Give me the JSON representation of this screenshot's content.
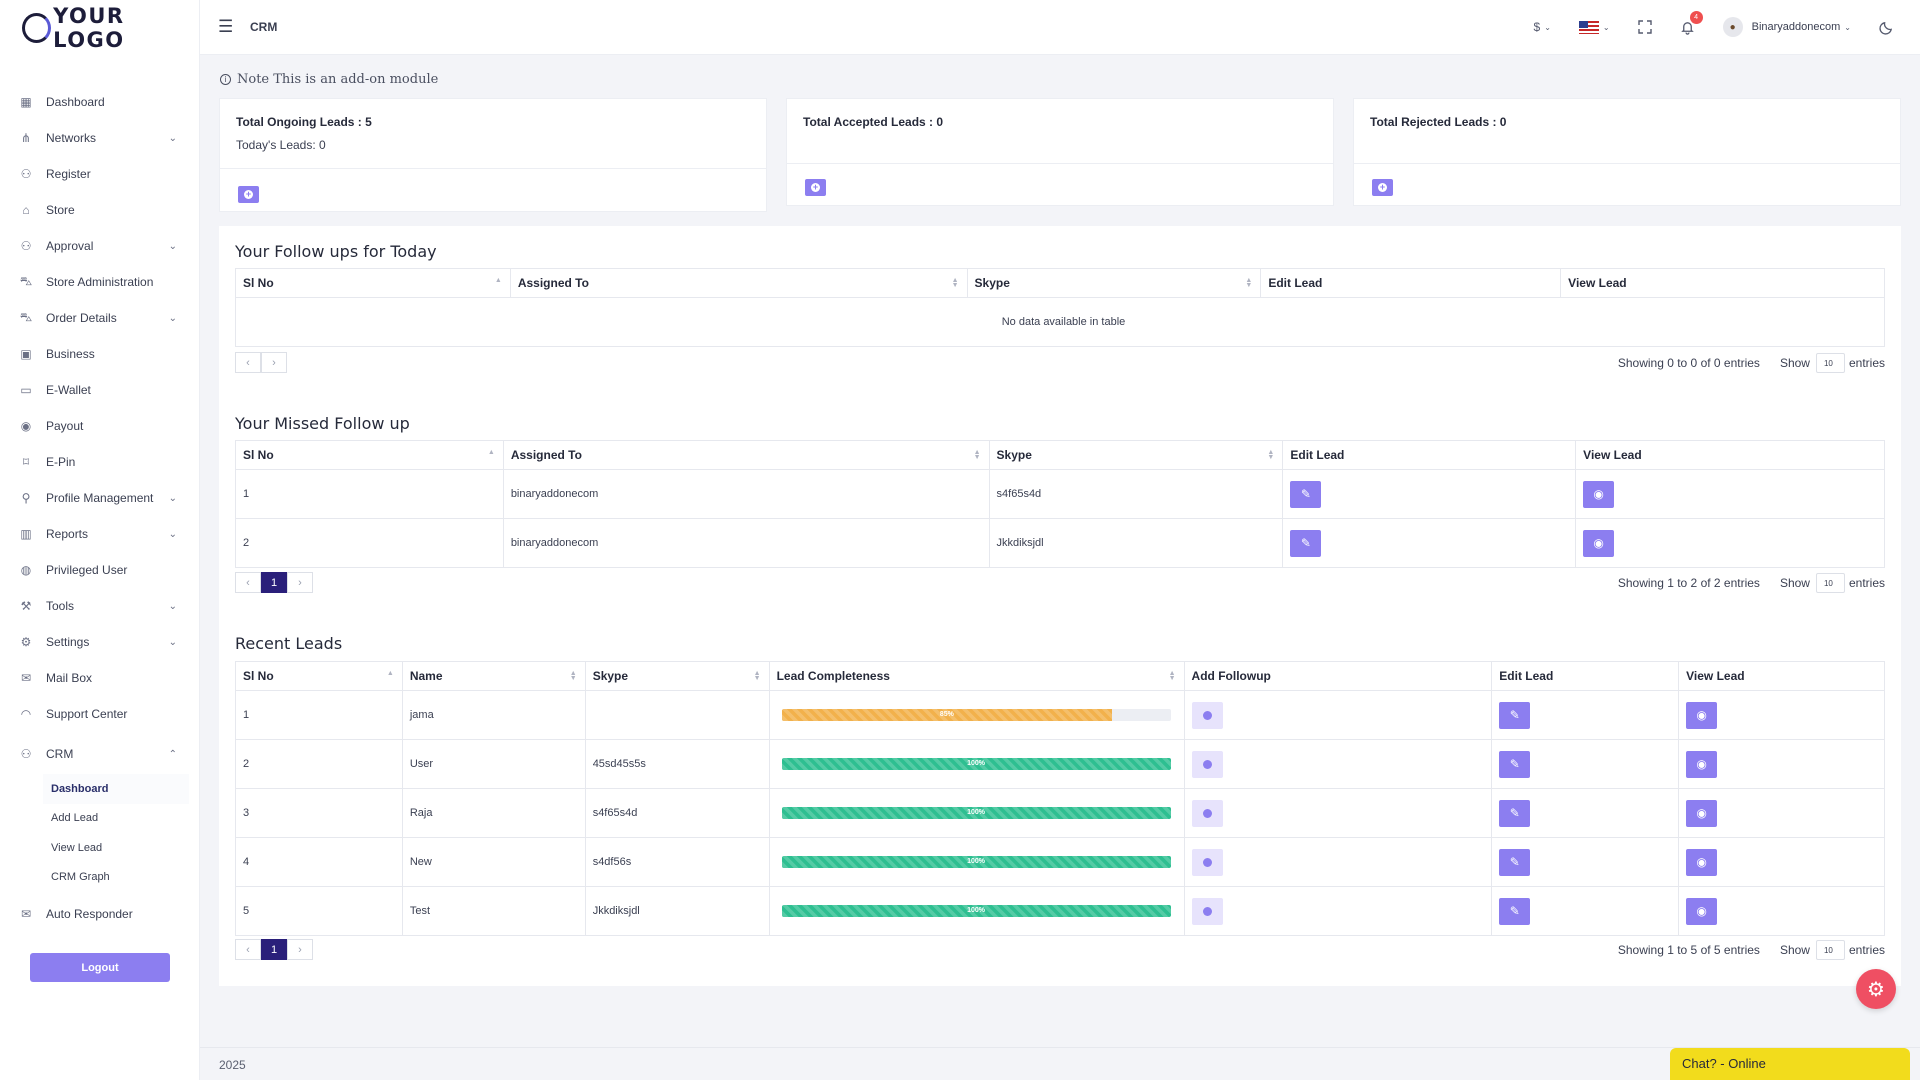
{
  "brand": {
    "logo_text": "YOUR LOGO"
  },
  "topbar": {
    "page_title": "CRM",
    "currency": "$",
    "notification_count": "4",
    "username": "Binaryaddonecom"
  },
  "sidebar": {
    "items": [
      {
        "label": "Dashboard",
        "icon": "dashboard-icon"
      },
      {
        "label": "Networks",
        "icon": "network-icon",
        "expandable": true
      },
      {
        "label": "Register",
        "icon": "user-plus-icon"
      },
      {
        "label": "Store",
        "icon": "store-icon"
      },
      {
        "label": "Approval",
        "icon": "user-check-icon",
        "expandable": true
      },
      {
        "label": "Store Administration",
        "icon": "cart-icon"
      },
      {
        "label": "Order Details",
        "icon": "cart-icon",
        "expandable": true
      },
      {
        "label": "Business",
        "icon": "briefcase-icon"
      },
      {
        "label": "E-Wallet",
        "icon": "wallet-icon"
      },
      {
        "label": "Payout",
        "icon": "money-icon"
      },
      {
        "label": "E-Pin",
        "icon": "pin-icon"
      },
      {
        "label": "Profile Management",
        "icon": "user-icon",
        "expandable": true
      },
      {
        "label": "Reports",
        "icon": "bar-chart-icon",
        "expandable": true
      },
      {
        "label": "Privileged User",
        "icon": "user-circle-icon"
      },
      {
        "label": "Tools",
        "icon": "wrench-icon",
        "expandable": true
      },
      {
        "label": "Settings",
        "icon": "gear-icon",
        "expandable": true
      },
      {
        "label": "Mail Box",
        "icon": "mail-icon"
      },
      {
        "label": "Support Center",
        "icon": "headset-icon"
      },
      {
        "label": "CRM",
        "icon": "users-icon",
        "expanded": true
      }
    ],
    "crm_sub": [
      "Dashboard",
      "Add Lead",
      "View Lead",
      "CRM Graph"
    ],
    "after": {
      "label": "Auto Responder",
      "icon": "mail-icon"
    },
    "logout": "Logout"
  },
  "note": "Note This is an add-on module",
  "stats": {
    "ongoing": "Total Ongoing Leads : 5",
    "today": "Today's Leads: 0",
    "accepted": "Total Accepted Leads : 0",
    "rejected": "Total Rejected Leads : 0"
  },
  "followups": {
    "title": "Your Follow ups for Today",
    "headers": [
      "Sl No",
      "Assigned To",
      "Skype",
      "Edit Lead",
      "View Lead"
    ],
    "empty": "No data available in table",
    "showing": "Showing 0 to 0 of 0 entries",
    "show_label": "Show",
    "page_size": "10",
    "entries_label": "entries"
  },
  "missed": {
    "title": "Your Missed Follow up",
    "headers": [
      "Sl No",
      "Assigned To",
      "Skype",
      "Edit Lead",
      "View Lead"
    ],
    "rows": [
      {
        "sl": "1",
        "assigned": "binaryaddonecom",
        "skype": "s4f65s4d"
      },
      {
        "sl": "2",
        "assigned": "binaryaddonecom",
        "skype": "Jkkdiksjdl"
      }
    ],
    "page": "1",
    "showing": "Showing 1 to 2 of 2 entries",
    "show_label": "Show",
    "page_size": "10",
    "entries_label": "entries"
  },
  "recent": {
    "title": "Recent Leads",
    "headers": [
      "Sl No",
      "Name",
      "Skype",
      "Lead Completeness",
      "Add Followup",
      "Edit Lead",
      "View Lead"
    ],
    "rows": [
      {
        "sl": "1",
        "name": "jama",
        "skype": "",
        "completeness": 85,
        "label": "85%"
      },
      {
        "sl": "2",
        "name": "User",
        "skype": "45sd45s5s",
        "completeness": 100,
        "label": "100%"
      },
      {
        "sl": "3",
        "name": "Raja",
        "skype": "s4f65s4d",
        "completeness": 100,
        "label": "100%"
      },
      {
        "sl": "4",
        "name": "New",
        "skype": "s4df56s",
        "completeness": 100,
        "label": "100%"
      },
      {
        "sl": "5",
        "name": "Test",
        "skype": "Jkkdiksjdl",
        "completeness": 100,
        "label": "100%"
      }
    ],
    "page": "1",
    "showing": "Showing 1 to 5 of 5 entries",
    "show_label": "Show",
    "page_size": "10",
    "entries_label": "entries"
  },
  "colors": {
    "accent": "#8c7ef0",
    "progress_partial": "#f2b14b",
    "progress_full": "#2ebf91",
    "page_active": "#2a1f7a",
    "chat": "#f2dc1c"
  },
  "footer": {
    "year": "2025",
    "chat": "Chat? - Online"
  }
}
